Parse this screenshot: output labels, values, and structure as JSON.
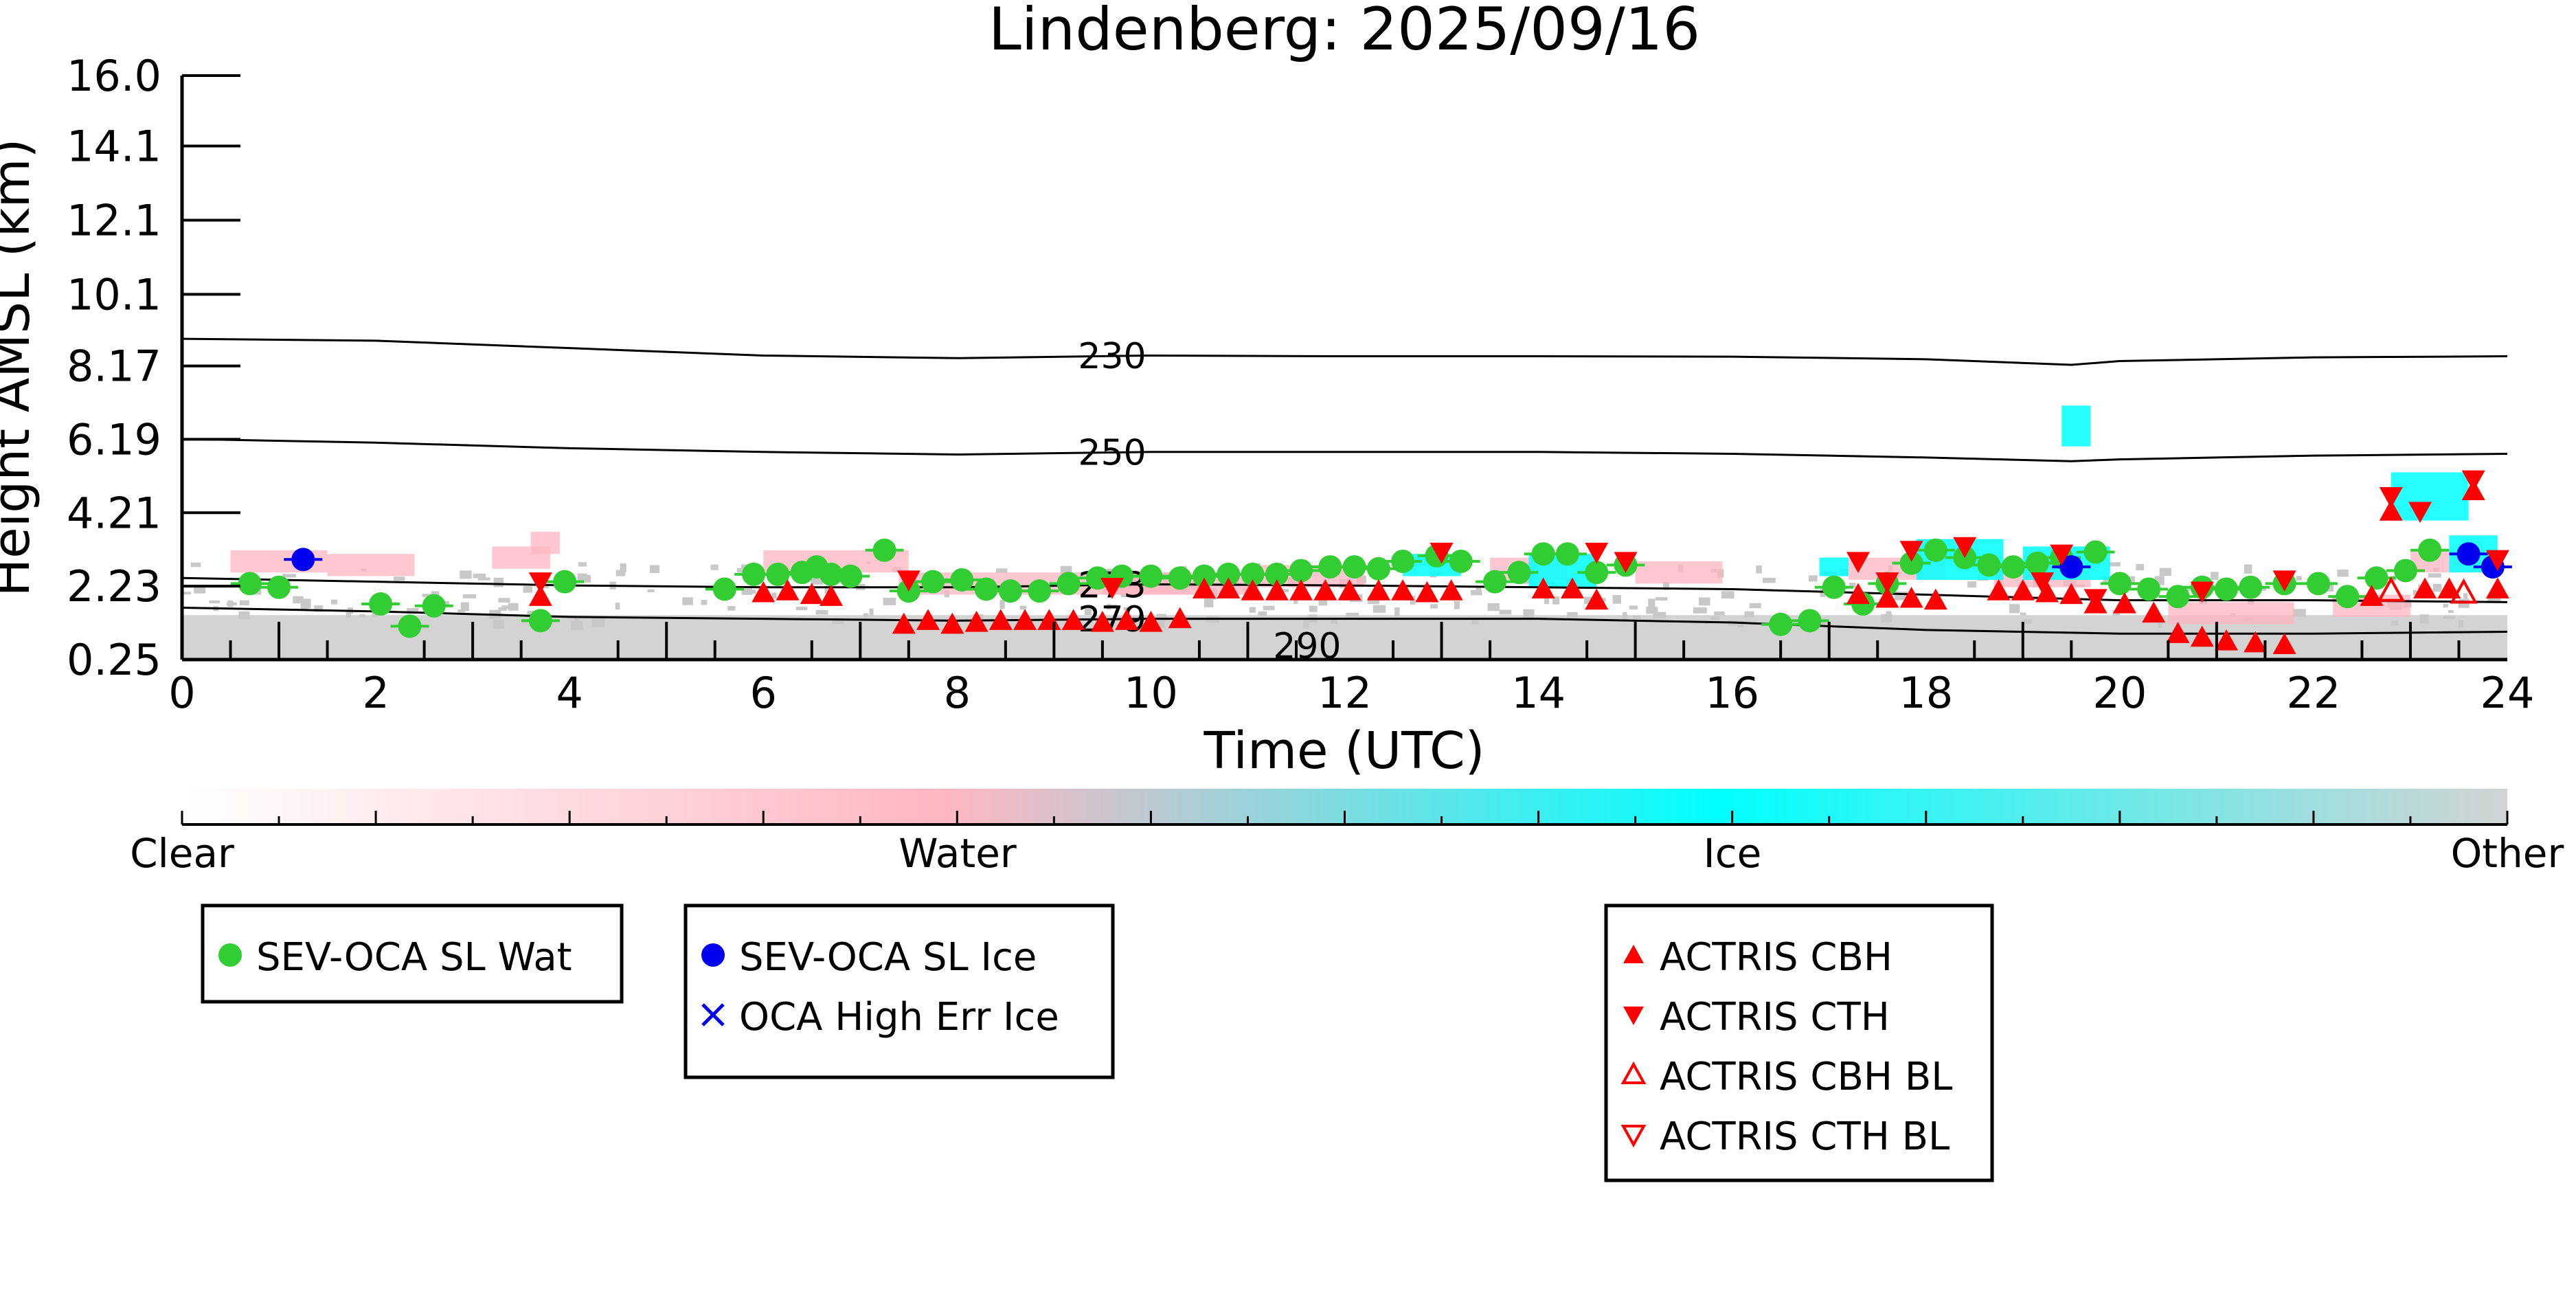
{
  "chart_data": {
    "type": "scatter",
    "title": "Lindenberg: 2025/09/16",
    "xlabel": "Time (UTC)",
    "ylabel": "Height AMSL (km)",
    "xlim": [
      0,
      24
    ],
    "ylim": [
      0.25,
      16.0
    ],
    "x_ticks": [
      "0",
      "2",
      "4",
      "6",
      "8",
      "10",
      "12",
      "14",
      "16",
      "18",
      "20",
      "22",
      "24"
    ],
    "y_ticks": [
      {
        "value": 0.25,
        "label": "0.25"
      },
      {
        "value": 2.23,
        "label": "2.23"
      },
      {
        "value": 4.21,
        "label": "4.21"
      },
      {
        "value": 6.19,
        "label": "6.19"
      },
      {
        "value": 8.17,
        "label": "8.17"
      },
      {
        "value": 10.1,
        "label": "10.1"
      },
      {
        "value": 12.1,
        "label": "12.1"
      },
      {
        "value": 14.1,
        "label": "14.1"
      },
      {
        "value": 16.0,
        "label": "16.0"
      }
    ],
    "colorbar": {
      "labels": [
        "Clear",
        "Water",
        "Ice",
        "Other"
      ],
      "colors": [
        "#ffffff",
        "#ffb6c1",
        "#00ffff",
        "#d3d3d3"
      ]
    },
    "contours": [
      {
        "label": "230",
        "label_x": 9.6,
        "points": [
          [
            0,
            8.9
          ],
          [
            2,
            8.85
          ],
          [
            4,
            8.65
          ],
          [
            6,
            8.45
          ],
          [
            8,
            8.38
          ],
          [
            10,
            8.45
          ],
          [
            12,
            8.43
          ],
          [
            14,
            8.43
          ],
          [
            16,
            8.42
          ],
          [
            18,
            8.35
          ],
          [
            19.5,
            8.2
          ],
          [
            20,
            8.3
          ],
          [
            22,
            8.4
          ],
          [
            24,
            8.43
          ]
        ]
      },
      {
        "label": "250",
        "label_x": 9.6,
        "points": [
          [
            0,
            6.2
          ],
          [
            2,
            6.1
          ],
          [
            4,
            5.95
          ],
          [
            6,
            5.85
          ],
          [
            8,
            5.78
          ],
          [
            10,
            5.85
          ],
          [
            12,
            5.85
          ],
          [
            14,
            5.85
          ],
          [
            16,
            5.8
          ],
          [
            18,
            5.7
          ],
          [
            19.5,
            5.6
          ],
          [
            20,
            5.65
          ],
          [
            22,
            5.75
          ],
          [
            24,
            5.8
          ]
        ]
      },
      {
        "label": "273",
        "label_x": 9.6,
        "points": [
          [
            0,
            2.45
          ],
          [
            2,
            2.35
          ],
          [
            4,
            2.25
          ],
          [
            6,
            2.2
          ],
          [
            8,
            2.2
          ],
          [
            10,
            2.28
          ],
          [
            12,
            2.25
          ],
          [
            14,
            2.2
          ],
          [
            16,
            2.15
          ],
          [
            18,
            2.0
          ],
          [
            20,
            1.85
          ],
          [
            22,
            1.85
          ],
          [
            24,
            1.8
          ]
        ]
      },
      {
        "label": "279",
        "label_x": 9.6,
        "points": [
          [
            0,
            1.65
          ],
          [
            2,
            1.55
          ],
          [
            4,
            1.4
          ],
          [
            6,
            1.35
          ],
          [
            8,
            1.3
          ],
          [
            10,
            1.35
          ],
          [
            12,
            1.35
          ],
          [
            14,
            1.35
          ],
          [
            16,
            1.25
          ],
          [
            18,
            1.05
          ],
          [
            20,
            0.95
          ],
          [
            22,
            0.95
          ],
          [
            24,
            1.0
          ]
        ]
      },
      {
        "label": "290",
        "label_x": 11.4,
        "points": []
      }
    ],
    "series": [
      {
        "name": "SEV-OCA SL Wat",
        "marker": "circle",
        "color": "#32cd32",
        "points": [
          [
            0.7,
            2.3
          ],
          [
            1.0,
            2.2
          ],
          [
            2.05,
            1.75
          ],
          [
            2.35,
            1.15
          ],
          [
            2.6,
            1.7
          ],
          [
            3.7,
            1.3
          ],
          [
            3.95,
            2.35
          ],
          [
            5.6,
            2.15
          ],
          [
            5.9,
            2.55
          ],
          [
            6.15,
            2.55
          ],
          [
            6.4,
            2.6
          ],
          [
            6.55,
            2.75
          ],
          [
            6.7,
            2.55
          ],
          [
            6.9,
            2.5
          ],
          [
            7.25,
            3.2
          ],
          [
            7.5,
            2.1
          ],
          [
            7.75,
            2.35
          ],
          [
            8.05,
            2.4
          ],
          [
            8.3,
            2.15
          ],
          [
            8.55,
            2.1
          ],
          [
            8.85,
            2.1
          ],
          [
            9.15,
            2.3
          ],
          [
            9.45,
            2.45
          ],
          [
            9.7,
            2.5
          ],
          [
            10.0,
            2.5
          ],
          [
            10.3,
            2.45
          ],
          [
            10.55,
            2.5
          ],
          [
            10.8,
            2.55
          ],
          [
            11.05,
            2.55
          ],
          [
            11.3,
            2.55
          ],
          [
            11.55,
            2.65
          ],
          [
            11.85,
            2.75
          ],
          [
            12.1,
            2.75
          ],
          [
            12.35,
            2.7
          ],
          [
            12.6,
            2.9
          ],
          [
            12.95,
            3.05
          ],
          [
            13.2,
            2.9
          ],
          [
            13.55,
            2.35
          ],
          [
            13.8,
            2.6
          ],
          [
            14.05,
            3.1
          ],
          [
            14.3,
            3.1
          ],
          [
            14.6,
            2.6
          ],
          [
            14.9,
            2.8
          ],
          [
            16.5,
            1.2
          ],
          [
            16.8,
            1.3
          ],
          [
            17.05,
            2.2
          ],
          [
            17.35,
            1.75
          ],
          [
            17.6,
            2.3
          ],
          [
            17.85,
            2.85
          ],
          [
            18.1,
            3.2
          ],
          [
            18.4,
            3.0
          ],
          [
            18.65,
            2.8
          ],
          [
            18.9,
            2.75
          ],
          [
            19.15,
            2.85
          ],
          [
            19.4,
            3.0
          ],
          [
            19.75,
            3.15
          ],
          [
            20.0,
            2.3
          ],
          [
            20.3,
            2.15
          ],
          [
            20.6,
            1.95
          ],
          [
            20.85,
            2.2
          ],
          [
            21.1,
            2.15
          ],
          [
            21.35,
            2.2
          ],
          [
            21.7,
            2.3
          ],
          [
            22.05,
            2.3
          ],
          [
            22.35,
            1.95
          ],
          [
            22.65,
            2.45
          ],
          [
            22.95,
            2.65
          ],
          [
            23.2,
            3.2
          ]
        ]
      },
      {
        "name": "SEV-OCA SL Ice",
        "marker": "circle",
        "color": "#0000ee",
        "points": [
          [
            1.25,
            2.95
          ],
          [
            19.5,
            2.75
          ],
          [
            23.6,
            3.1
          ],
          [
            23.85,
            2.75
          ]
        ]
      },
      {
        "name": "OCA High Err Ice",
        "marker": "x",
        "color": "#0000ee",
        "points": []
      },
      {
        "name": "ACTRIS CBH",
        "marker": "triangle-up",
        "color": "#ff0000",
        "points": [
          [
            3.7,
            1.95
          ],
          [
            6.0,
            2.05
          ],
          [
            6.25,
            2.1
          ],
          [
            6.5,
            2.0
          ],
          [
            6.7,
            1.95
          ],
          [
            7.45,
            1.2
          ],
          [
            7.7,
            1.3
          ],
          [
            7.95,
            1.2
          ],
          [
            8.2,
            1.25
          ],
          [
            8.45,
            1.3
          ],
          [
            8.7,
            1.3
          ],
          [
            8.95,
            1.3
          ],
          [
            9.2,
            1.3
          ],
          [
            9.5,
            1.25
          ],
          [
            9.75,
            1.3
          ],
          [
            10.0,
            1.25
          ],
          [
            10.3,
            1.35
          ],
          [
            10.55,
            2.15
          ],
          [
            10.8,
            2.15
          ],
          [
            11.05,
            2.1
          ],
          [
            11.3,
            2.1
          ],
          [
            11.55,
            2.1
          ],
          [
            11.8,
            2.1
          ],
          [
            12.05,
            2.1
          ],
          [
            12.35,
            2.1
          ],
          [
            12.6,
            2.1
          ],
          [
            12.85,
            2.05
          ],
          [
            13.1,
            2.1
          ],
          [
            14.05,
            2.15
          ],
          [
            14.35,
            2.15
          ],
          [
            14.6,
            1.85
          ],
          [
            17.3,
            2.0
          ],
          [
            17.6,
            1.9
          ],
          [
            17.85,
            1.9
          ],
          [
            18.1,
            1.85
          ],
          [
            18.75,
            2.1
          ],
          [
            19.0,
            2.1
          ],
          [
            19.25,
            2.05
          ],
          [
            19.5,
            2.0
          ],
          [
            19.75,
            1.75
          ],
          [
            20.05,
            1.75
          ],
          [
            20.35,
            1.5
          ],
          [
            20.6,
            0.95
          ],
          [
            20.85,
            0.85
          ],
          [
            21.1,
            0.75
          ],
          [
            21.4,
            0.7
          ],
          [
            21.7,
            0.65
          ],
          [
            22.6,
            1.95
          ],
          [
            22.8,
            4.25
          ],
          [
            23.15,
            2.15
          ],
          [
            23.4,
            2.15
          ],
          [
            23.65,
            4.8
          ],
          [
            23.9,
            2.15
          ]
        ]
      },
      {
        "name": "ACTRIS CTH",
        "marker": "triangle-down",
        "color": "#ff0000",
        "points": [
          [
            3.7,
            2.35
          ],
          [
            7.5,
            2.4
          ],
          [
            9.6,
            2.2
          ],
          [
            13.0,
            3.15
          ],
          [
            14.6,
            3.15
          ],
          [
            14.9,
            2.9
          ],
          [
            17.3,
            2.9
          ],
          [
            17.6,
            2.35
          ],
          [
            17.85,
            3.2
          ],
          [
            18.4,
            3.3
          ],
          [
            19.2,
            2.35
          ],
          [
            19.4,
            3.1
          ],
          [
            19.75,
            1.9
          ],
          [
            20.85,
            2.1
          ],
          [
            21.7,
            2.4
          ],
          [
            22.8,
            4.65
          ],
          [
            23.1,
            4.25
          ],
          [
            23.65,
            5.1
          ],
          [
            23.9,
            2.95
          ]
        ]
      },
      {
        "name": "ACTRIS CBH BL",
        "marker": "triangle-up-open",
        "color": "#ff0000",
        "points": [
          [
            22.8,
            2.1
          ],
          [
            23.55,
            2.05
          ]
        ]
      },
      {
        "name": "ACTRIS CTH BL",
        "marker": "triangle-down-open",
        "color": "#ff0000",
        "points": []
      }
    ],
    "legend_groups": [
      [
        "SEV-OCA SL Wat"
      ],
      [
        "SEV-OCA SL Ice",
        "OCA High Err Ice"
      ],
      [
        "ACTRIS CBH",
        "ACTRIS CTH",
        "ACTRIS CBH BL",
        "ACTRIS CTH BL"
      ]
    ]
  }
}
